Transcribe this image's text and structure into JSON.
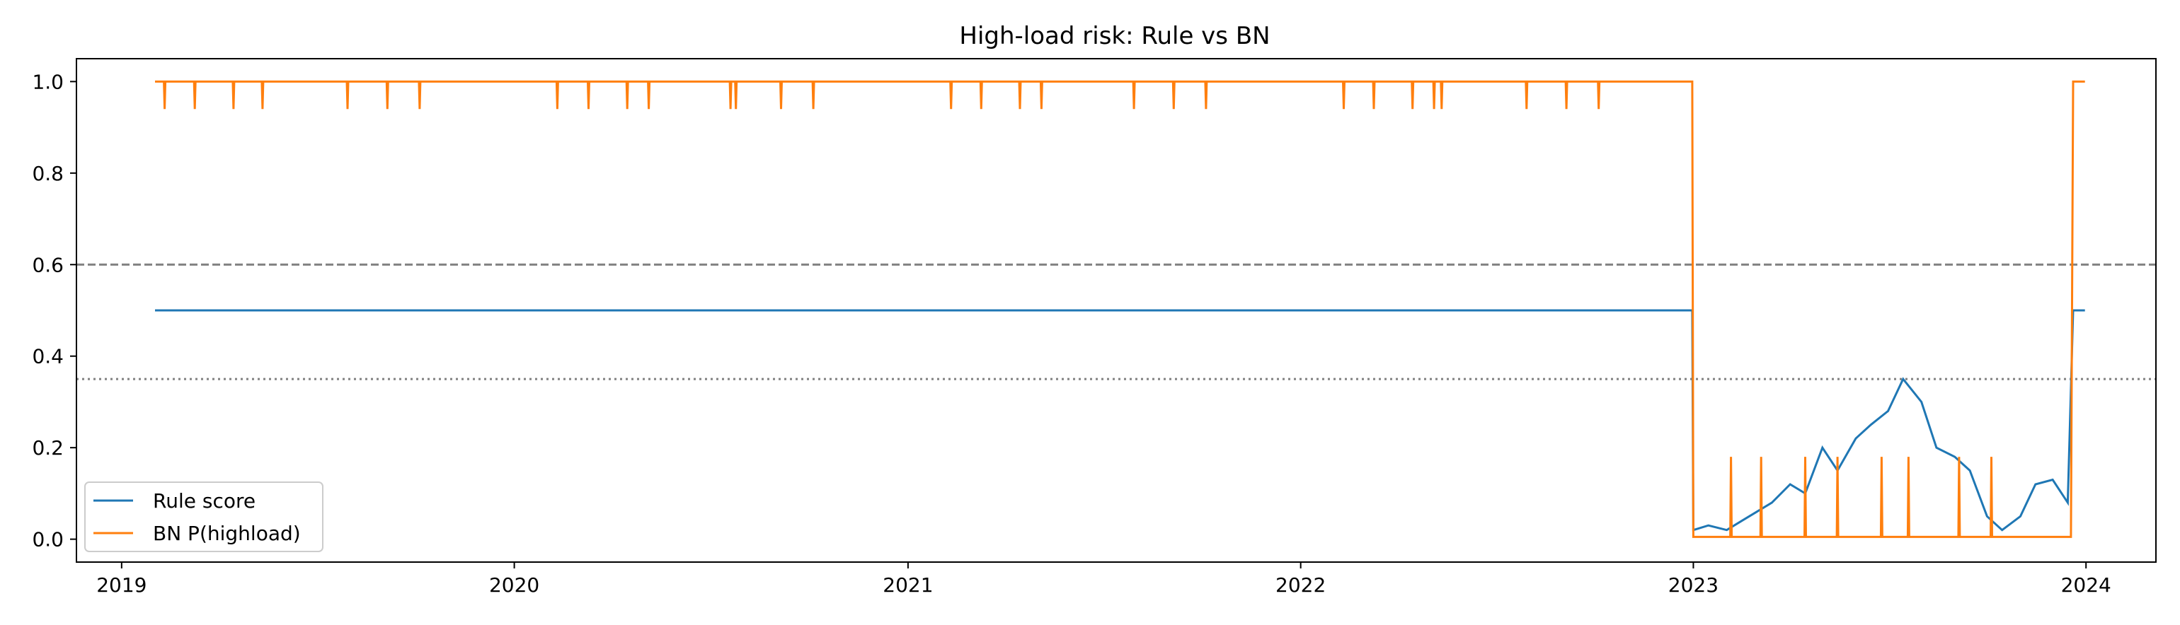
{
  "chart_data": {
    "type": "line",
    "title": "High-load risk: Rule vs BN",
    "xlabel": "",
    "ylabel": "",
    "xlim": [
      "2018-11-20",
      "2024-03-06"
    ],
    "ylim": [
      -0.05,
      1.05
    ],
    "x_ticks": [
      "2019",
      "2020",
      "2021",
      "2022",
      "2023",
      "2024"
    ],
    "y_ticks": [
      "0.0",
      "0.2",
      "0.4",
      "0.6",
      "0.8",
      "1.0"
    ],
    "grid": false,
    "legend_position": "lower-left",
    "reference_lines": [
      {
        "y": 0.6,
        "style": "dashed",
        "color": "#808080"
      },
      {
        "y": 0.35,
        "style": "dotted",
        "color": "#808080"
      }
    ],
    "series": [
      {
        "name": "Rule score",
        "color": "#1f77b4",
        "points": [
          {
            "x": "2019-02-01",
            "y": 0.5
          },
          {
            "x": "2022-12-31",
            "y": 0.5
          },
          {
            "x": "2023-01-01",
            "y": 0.02
          },
          {
            "x": "2023-01-15",
            "y": 0.03
          },
          {
            "x": "2023-02-01",
            "y": 0.02
          },
          {
            "x": "2023-02-15",
            "y": 0.04
          },
          {
            "x": "2023-03-01",
            "y": 0.06
          },
          {
            "x": "2023-03-15",
            "y": 0.08
          },
          {
            "x": "2023-04-01",
            "y": 0.12
          },
          {
            "x": "2023-04-15",
            "y": 0.1
          },
          {
            "x": "2023-05-01",
            "y": 0.2
          },
          {
            "x": "2023-05-15",
            "y": 0.15
          },
          {
            "x": "2023-06-01",
            "y": 0.22
          },
          {
            "x": "2023-06-15",
            "y": 0.25
          },
          {
            "x": "2023-07-01",
            "y": 0.28
          },
          {
            "x": "2023-07-15",
            "y": 0.35
          },
          {
            "x": "2023-08-01",
            "y": 0.3
          },
          {
            "x": "2023-08-15",
            "y": 0.2
          },
          {
            "x": "2023-09-01",
            "y": 0.18
          },
          {
            "x": "2023-09-15",
            "y": 0.15
          },
          {
            "x": "2023-10-01",
            "y": 0.05
          },
          {
            "x": "2023-10-15",
            "y": 0.02
          },
          {
            "x": "2023-11-01",
            "y": 0.05
          },
          {
            "x": "2023-11-15",
            "y": 0.12
          },
          {
            "x": "2023-12-01",
            "y": 0.13
          },
          {
            "x": "2023-12-15",
            "y": 0.08
          },
          {
            "x": "2023-12-20",
            "y": 0.5
          },
          {
            "x": "2023-12-31",
            "y": 0.5
          }
        ]
      },
      {
        "name": "BN P(highload)",
        "color": "#ff7f0e",
        "baseline_points": [
          {
            "x": "2019-02-01",
            "y": 1.0
          },
          {
            "x": "2022-12-31",
            "y": 1.0
          },
          {
            "x": "2023-01-01",
            "y": 0.005
          },
          {
            "x": "2023-12-18",
            "y": 0.005
          },
          {
            "x": "2023-12-20",
            "y": 1.0
          },
          {
            "x": "2023-12-31",
            "y": 1.0
          }
        ],
        "dips": [
          {
            "x": "2019-02-10",
            "y": 0.94
          },
          {
            "x": "2019-03-10",
            "y": 0.94
          },
          {
            "x": "2019-04-15",
            "y": 0.94
          },
          {
            "x": "2019-05-12",
            "y": 0.94
          },
          {
            "x": "2019-07-30",
            "y": 0.94
          },
          {
            "x": "2019-09-05",
            "y": 0.94
          },
          {
            "x": "2019-10-05",
            "y": 0.94
          },
          {
            "x": "2020-02-10",
            "y": 0.94
          },
          {
            "x": "2020-03-10",
            "y": 0.94
          },
          {
            "x": "2020-04-15",
            "y": 0.94
          },
          {
            "x": "2020-05-05",
            "y": 0.94
          },
          {
            "x": "2020-07-20",
            "y": 0.94
          },
          {
            "x": "2020-07-25",
            "y": 0.94
          },
          {
            "x": "2020-09-05",
            "y": 0.94
          },
          {
            "x": "2020-10-05",
            "y": 0.94
          },
          {
            "x": "2021-02-10",
            "y": 0.94
          },
          {
            "x": "2021-03-10",
            "y": 0.94
          },
          {
            "x": "2021-04-15",
            "y": 0.94
          },
          {
            "x": "2021-05-05",
            "y": 0.94
          },
          {
            "x": "2021-07-30",
            "y": 0.94
          },
          {
            "x": "2021-09-05",
            "y": 0.94
          },
          {
            "x": "2021-10-05",
            "y": 0.94
          },
          {
            "x": "2022-02-10",
            "y": 0.94
          },
          {
            "x": "2022-03-10",
            "y": 0.94
          },
          {
            "x": "2022-04-15",
            "y": 0.94
          },
          {
            "x": "2022-05-05",
            "y": 0.94
          },
          {
            "x": "2022-05-12",
            "y": 0.94
          },
          {
            "x": "2022-07-30",
            "y": 0.94
          },
          {
            "x": "2022-09-05",
            "y": 0.94
          },
          {
            "x": "2022-10-05",
            "y": 0.94
          }
        ],
        "spikes": [
          {
            "x": "2023-02-05",
            "y": 0.18
          },
          {
            "x": "2023-03-05",
            "y": 0.18
          },
          {
            "x": "2023-04-15",
            "y": 0.18
          },
          {
            "x": "2023-05-15",
            "y": 0.18
          },
          {
            "x": "2023-06-25",
            "y": 0.18
          },
          {
            "x": "2023-07-20",
            "y": 0.18
          },
          {
            "x": "2023-09-05",
            "y": 0.18
          },
          {
            "x": "2023-10-05",
            "y": 0.18
          }
        ]
      }
    ]
  }
}
